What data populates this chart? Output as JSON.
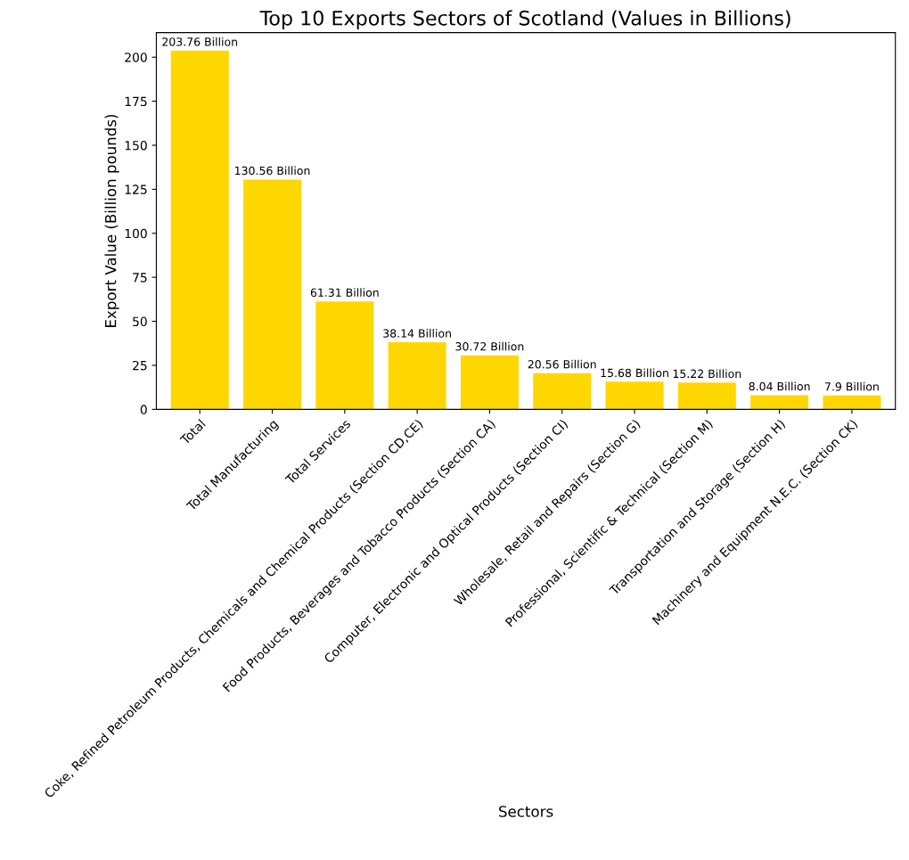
{
  "chart_data": {
    "type": "bar",
    "title": "Top 10 Exports Sectors of Scotland (Values in Billions)",
    "xlabel": "Sectors",
    "ylabel": "Export Value (Billion pounds)",
    "categories": [
      "Total",
      "Total Manufacturing",
      "Total Services",
      "Coke, Refined Petroleum Products, Chemicals and Chemical Products (Section CD,CE)",
      "Food Products, Beverages and Tobacco Products (Section CA)",
      "Computer, Electronic and Optical Products (Section CI)",
      "Wholesale, Retail and Repairs (Section G)",
      "Professional, Scientific & Technical (Section M)",
      "Transportation and Storage (Section H)",
      "Machinery and Equipment N.E.C. (Section CK)"
    ],
    "values": [
      203.76,
      130.56,
      61.31,
      38.14,
      30.72,
      20.56,
      15.68,
      15.22,
      8.04,
      7.9
    ],
    "value_labels": [
      "203.76 Billion",
      "130.56 Billion",
      "61.31 Billion",
      "38.14 Billion",
      "30.72 Billion",
      "20.56 Billion",
      "15.68 Billion",
      "15.22 Billion",
      "8.04 Billion",
      "7.9 Billion"
    ],
    "color": "#ffd700",
    "ylim": [
      0,
      213.95
    ],
    "yticks": [
      0,
      25,
      50,
      75,
      100,
      125,
      150,
      175,
      200
    ],
    "grid": false
  }
}
